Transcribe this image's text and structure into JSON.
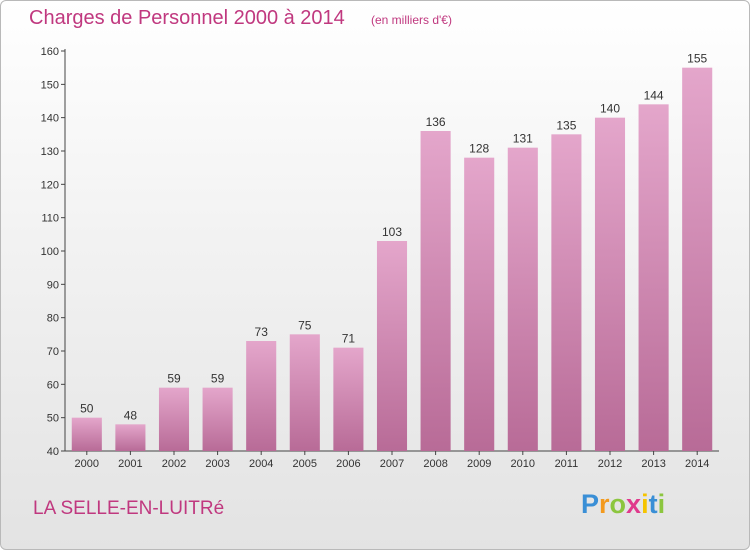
{
  "chart_data": {
    "type": "bar",
    "title": "Charges de Personnel 2000 à 2014",
    "subtitle": "(en milliers d'€)",
    "categories": [
      "2000",
      "2001",
      "2002",
      "2003",
      "2004",
      "2005",
      "2006",
      "2007",
      "2008",
      "2009",
      "2010",
      "2011",
      "2012",
      "2013",
      "2014"
    ],
    "values": [
      50,
      48,
      59,
      59,
      73,
      75,
      71,
      103,
      136,
      128,
      131,
      135,
      140,
      144,
      155
    ],
    "ylim": [
      40,
      160
    ],
    "yticks": [
      40,
      50,
      60,
      70,
      80,
      90,
      100,
      110,
      120,
      130,
      140,
      150,
      160
    ],
    "grid": false,
    "bar_color": "#d98cb8"
  },
  "footer": {
    "town": "LA SELLE-EN-LUITRé",
    "logo_letters": [
      "P",
      "r",
      "o",
      "x",
      "i",
      "t",
      "i"
    ],
    "logo_colors": [
      "#3a8fd6",
      "#f39a1e",
      "#8cc63f",
      "#e03a8c",
      "#f5c400",
      "#3a8fd6",
      "#8cc63f"
    ]
  }
}
